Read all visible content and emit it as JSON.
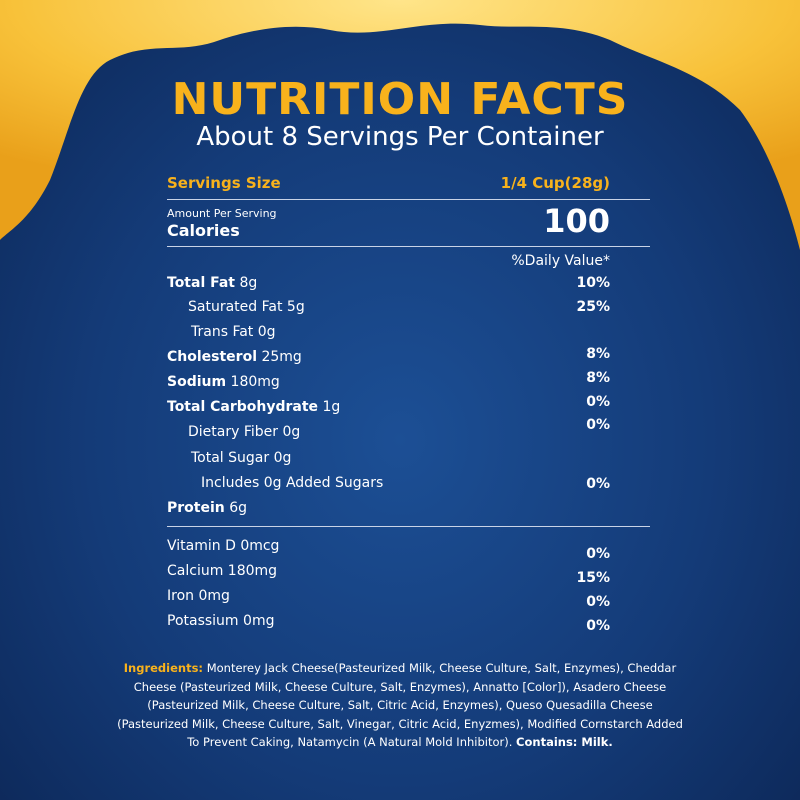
{
  "header": {
    "title": "NUTRITION FACTS",
    "subtitle": "About 8 Servings Per Container"
  },
  "serving": {
    "label": "Servings Size",
    "value": "1/4 Cup(28g)"
  },
  "calories": {
    "note": "Amount Per Serving",
    "label": "Calories",
    "value": "100"
  },
  "daily_value_header": "%Daily Value*",
  "nutrients": [
    {
      "name": "Total Fat",
      "amount": "8g",
      "dv": "10%"
    },
    {
      "name": "Saturated Fat",
      "amount": "5g",
      "dv": "25%"
    },
    {
      "name": "Trans Fat",
      "amount": "0g"
    },
    {
      "name": "Cholesterol",
      "amount": "25mg",
      "dv": "8%"
    },
    {
      "name": "Sodium",
      "amount": "180mg",
      "dv": "8%"
    },
    {
      "name": "Total Carbohydrate",
      "amount": "1g",
      "dv": "0%"
    },
    {
      "name": "Dietary Fiber",
      "amount": "0g",
      "dv": "0%"
    },
    {
      "name": "Total Sugar",
      "amount": "0g"
    },
    {
      "name": "Includes 0g Added Sugars",
      "dv": "0%"
    },
    {
      "name": "Protein",
      "amount": "6g"
    }
  ],
  "vitamins": [
    {
      "name": "Vitamin D",
      "amount": "0mcg",
      "dv": "0%"
    },
    {
      "name": "Calcium",
      "amount": "180mg",
      "dv": "15%"
    },
    {
      "name": "Iron",
      "amount": "0mg",
      "dv": "0%"
    },
    {
      "name": "Potassium",
      "amount": "0mg",
      "dv": "0%"
    }
  ],
  "ingredients": {
    "label": "Ingredients:",
    "text": "Monterey Jack Cheese(Pasteurized Milk, Cheese Culture, Salt, Enzymes), Cheddar Cheese (Pasteurized Milk, Cheese Culture, Salt, Enzymes), Annatto [Color]), Asadero Cheese (Pasteurized Milk, Cheese Culture, Salt, Citric Acid, Enzymes), Queso Quesadilla Cheese (Pasteurized Milk, Cheese Culture, Salt, Vinegar, Citric Acid, Enyzmes), Modified Cornstarch Added To Prevent Caking, Natamycin (A Natural Mold Inhibitor).",
    "contains": "Contains: Milk."
  }
}
